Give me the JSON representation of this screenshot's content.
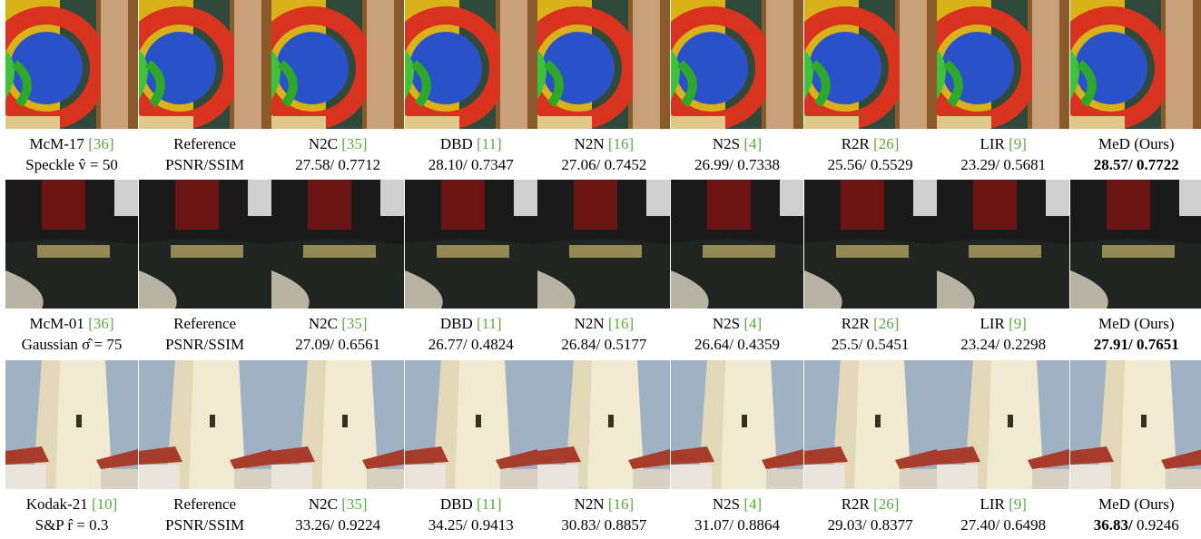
{
  "rows": [
    {
      "cells": [
        {
          "name": "McM-17",
          "cite": "[36]",
          "note": "Speckle v̂ = 50"
        },
        {
          "name": "Reference",
          "note": "PSNR/SSIM"
        },
        {
          "name": "N2C",
          "cite": "[35]",
          "psnr": "27.58/",
          "ssim": "0.7712"
        },
        {
          "name": "DBD",
          "cite": "[11]",
          "psnr": "28.10/",
          "ssim": "0.7347"
        },
        {
          "name": "N2N",
          "cite": "[16]",
          "psnr": "27.06/",
          "ssim": "0.7452"
        },
        {
          "name": "N2S",
          "cite": "[4]",
          "psnr": "26.99/",
          "ssim": "0.7338"
        },
        {
          "name": "R2R",
          "cite": "[26]",
          "psnr": "25.56/",
          "ssim": "0.5529"
        },
        {
          "name": "LIR",
          "cite": "[9]",
          "psnr": "23.29/",
          "ssim": "0.5681"
        },
        {
          "name": "MeD (Ours)",
          "psnr": "28.57/",
          "ssim": "0.7722"
        }
      ]
    },
    {
      "cells": [
        {
          "name": "McM-01",
          "cite": "[36]",
          "note": "Gaussian σ̂ = 75"
        },
        {
          "name": "Reference",
          "note": "PSNR/SSIM"
        },
        {
          "name": "N2C",
          "cite": "[35]",
          "psnr": "27.09/",
          "ssim": "0.6561"
        },
        {
          "name": "DBD",
          "cite": "[11]",
          "psnr": "26.77/",
          "ssim": "0.4824"
        },
        {
          "name": "N2N",
          "cite": "[16]",
          "psnr": "26.84/",
          "ssim": "0.5177"
        },
        {
          "name": "N2S",
          "cite": "[4]",
          "psnr": "26.64/",
          "ssim": "0.4359"
        },
        {
          "name": "R2R",
          "cite": "[26]",
          "psnr": "25.5/",
          "ssim": "0.5451"
        },
        {
          "name": "LIR",
          "cite": "[9]",
          "psnr": "23.24/",
          "ssim": "0.2298"
        },
        {
          "name": "MeD (Ours)",
          "psnr": "27.91/",
          "ssim": "0.7651"
        }
      ]
    },
    {
      "cells": [
        {
          "name": "Kodak-21",
          "cite": "[10]",
          "note": "S&P r̂ = 0.3"
        },
        {
          "name": "Reference",
          "note": "PSNR/SSIM"
        },
        {
          "name": "N2C",
          "cite": "[35]",
          "psnr": "33.26/",
          "ssim": "0.9224"
        },
        {
          "name": "DBD",
          "cite": "[11]",
          "psnr": "34.25/",
          "ssim": "0.9413"
        },
        {
          "name": "N2N",
          "cite": "[16]",
          "psnr": "30.83/",
          "ssim": "0.8857"
        },
        {
          "name": "N2S",
          "cite": "[4]",
          "psnr": "31.07/",
          "ssim": "0.8864"
        },
        {
          "name": "R2R",
          "cite": "[26]",
          "psnr": "29.03/",
          "ssim": "0.8377"
        },
        {
          "name": "LIR",
          "cite": "[9]",
          "psnr": "27.40/",
          "ssim": "0.6498"
        },
        {
          "name": "MeD (Ours)",
          "psnr": "36.83/",
          "ssim": "0.9246"
        }
      ]
    }
  ]
}
